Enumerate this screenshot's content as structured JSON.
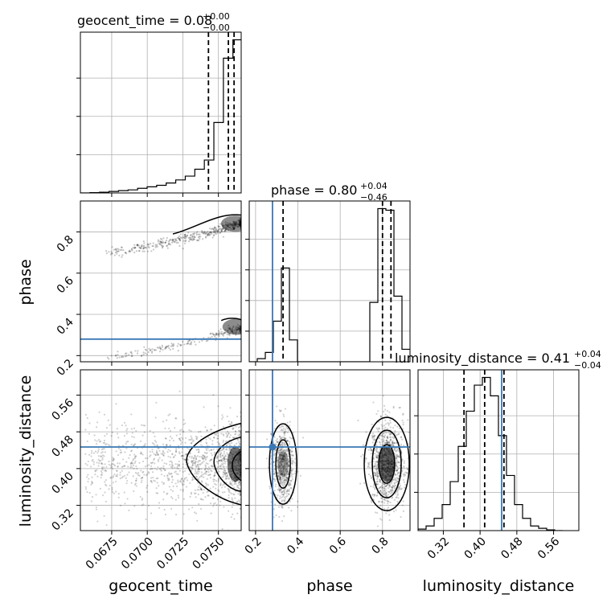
{
  "chart_data": {
    "type": "corner",
    "parameters": [
      "geocent_time",
      "phase",
      "luminosity_distance"
    ],
    "truth": {
      "color": "#3a78b5",
      "phase": 0.28,
      "luminosity_distance": 0.447
    },
    "panels": {
      "geocent_time_hist": {
        "title_name": "geocent_time",
        "title_value": "0.08",
        "title_plus": "+0.00",
        "title_minus": "−0.00",
        "quantile_lines": [
          0.0743,
          0.0757,
          0.0761
        ],
        "xlim": [
          0.0653,
          0.0766
        ],
        "bin_edges": [
          0.0653,
          0.06597,
          0.06664,
          0.06731,
          0.06798,
          0.06865,
          0.06932,
          0.06999,
          0.07066,
          0.07133,
          0.072,
          0.07267,
          0.07334,
          0.07401,
          0.07468,
          0.07535,
          0.07602,
          0.0766
        ],
        "counts": [
          0,
          0.002,
          0.005,
          0.01,
          0.015,
          0.02,
          0.03,
          0.04,
          0.05,
          0.065,
          0.085,
          0.11,
          0.155,
          0.215,
          0.46,
          0.88,
          1.0
        ],
        "yticks": [
          0.25,
          0.5,
          0.75
        ]
      },
      "phase_hist": {
        "title_name": "phase",
        "title_value": "0.80",
        "title_plus": "+0.04",
        "title_minus": "−0.46",
        "quantile_lines": [
          0.33,
          0.8,
          0.84
        ],
        "xlim": [
          0.17,
          0.93
        ],
        "bin_edges": [
          0.17,
          0.208,
          0.246,
          0.284,
          0.322,
          0.36,
          0.398,
          0.436,
          0.474,
          0.512,
          0.55,
          0.588,
          0.626,
          0.664,
          0.702,
          0.74,
          0.778,
          0.816,
          0.854,
          0.892,
          0.93
        ],
        "counts": [
          0,
          0.02,
          0.06,
          0.26,
          0.6,
          0.14,
          0,
          0,
          0,
          0,
          0,
          0,
          0,
          0,
          0,
          0.38,
          0.98,
          0.97,
          0.42,
          0.08
        ],
        "yticks": [
          0.2,
          0.4,
          0.6,
          0.8
        ]
      },
      "ld_hist": {
        "title_name": "luminosity_distance",
        "title_value": "0.41",
        "title_plus": "+0.04",
        "title_minus": "−0.04",
        "quantile_lines": [
          0.365,
          0.41,
          0.452
        ],
        "xlim": [
          0.265,
          0.615
        ],
        "bin_edges": [
          0.265,
          0.2825,
          0.3,
          0.3175,
          0.335,
          0.3525,
          0.37,
          0.3875,
          0.405,
          0.4225,
          0.44,
          0.4575,
          0.475,
          0.4925,
          0.51,
          0.5275,
          0.545,
          0.5625,
          0.58
        ],
        "counts": [
          0.01,
          0.03,
          0.08,
          0.17,
          0.32,
          0.55,
          0.78,
          0.95,
          1.0,
          0.88,
          0.62,
          0.36,
          0.17,
          0.08,
          0.03,
          0.015,
          0.005,
          0
        ],
        "yticks": [
          0.25,
          0.5,
          0.75
        ]
      },
      "phase_vs_time": {
        "xlim": [
          0.0653,
          0.0766
        ],
        "ylim": [
          0.17,
          0.95
        ],
        "yticks": [
          0.2,
          0.4,
          0.6,
          0.8
        ],
        "ytick_labels": [
          "0.2",
          "0.4",
          "0.6",
          "0.8"
        ],
        "ylabel": "phase"
      },
      "ld_vs_time": {
        "xlim": [
          0.0653,
          0.0766
        ],
        "ylim": [
          0.265,
          0.615
        ],
        "xticks": [
          0.0675,
          0.07,
          0.0725,
          0.075
        ],
        "xtick_labels": [
          "0.0675",
          "0.0700",
          "0.0725",
          "0.0750"
        ],
        "yticks": [
          0.32,
          0.4,
          0.48,
          0.56
        ],
        "ytick_labels": [
          "0.32",
          "0.40",
          "0.48",
          "0.56"
        ],
        "xlabel": "geocent_time",
        "ylabel": "luminosity_distance"
      },
      "ld_vs_phase": {
        "xlim": [
          0.17,
          0.93
        ],
        "ylim": [
          0.265,
          0.615
        ],
        "xticks": [
          0.2,
          0.4,
          0.6,
          0.8
        ],
        "xtick_labels": [
          "0.2",
          "0.4",
          "0.6",
          "0.8"
        ],
        "xlabel": "phase"
      },
      "ld_axis": {
        "xticks": [
          0.32,
          0.4,
          0.48,
          0.56
        ],
        "xtick_labels": [
          "0.32",
          "0.40",
          "0.48",
          "0.56"
        ],
        "xlabel": "luminosity_distance"
      }
    },
    "grid": true
  }
}
